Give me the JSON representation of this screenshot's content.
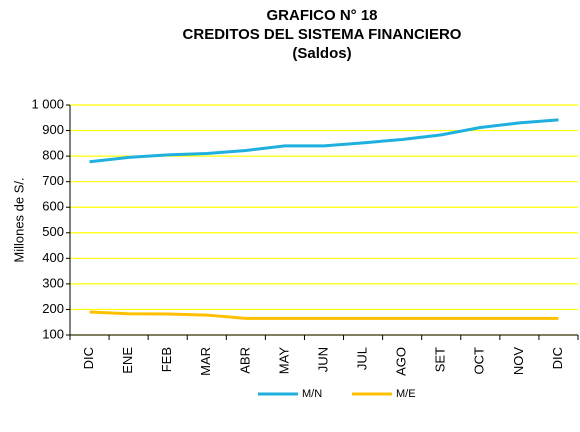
{
  "chart_data": {
    "type": "line",
    "title": [
      "GRAFICO N° 18",
      "CREDITOS DEL SISTEMA FINANCIERO",
      "(Saldos)"
    ],
    "y_label": "Millones de S/.",
    "categories": [
      "DIC",
      "ENE",
      "FEB",
      "MAR",
      "ABR",
      "MAY",
      "JUN",
      "JUL",
      "AGO",
      "SET",
      "OCT",
      "NOV",
      "DIC"
    ],
    "series": [
      {
        "name": "M/N",
        "color": "#1fb0e0",
        "values": [
          778,
          795,
          805,
          810,
          822,
          840,
          840,
          852,
          865,
          883,
          912,
          930,
          942
        ]
      },
      {
        "name": "M/E",
        "color": "#ffc000",
        "values": [
          190,
          183,
          182,
          178,
          165,
          165,
          165,
          165,
          165,
          165,
          165,
          165,
          165
        ]
      }
    ],
    "ylim": [
      100,
      1000
    ],
    "yticks": [
      100,
      200,
      300,
      400,
      500,
      600,
      700,
      800,
      900,
      {
        "value": 1000,
        "label": "1 000"
      }
    ],
    "grid": true,
    "grid_color": "#ffff00",
    "legend": "bottom"
  }
}
